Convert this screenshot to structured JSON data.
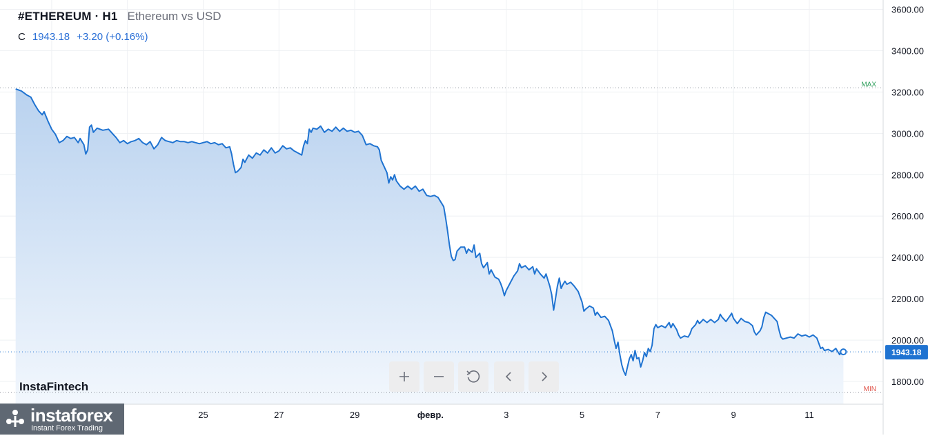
{
  "header": {
    "symbol": "#ETHEREUM · H1",
    "description": "Ethereum vs USD",
    "ohlc_label": "C",
    "close": "1943.18",
    "change": "+3.20 (+0.16%)"
  },
  "branding": {
    "small_logo": "InstaFintech",
    "logo_name": "instaforex",
    "logo_tagline": "Instant Forex Trading"
  },
  "toolbar": {
    "zoom_in_icon": "plus-icon",
    "zoom_out_icon": "minus-icon",
    "reset_icon": "reset-icon",
    "scroll_left_icon": "chevron-left-icon",
    "scroll_right_icon": "chevron-right-icon"
  },
  "colors": {
    "line": "#1f73d1",
    "area_top": "#b9d2ef",
    "area_bottom": "#f2f7fd",
    "last_price_bg": "#1f73d1",
    "max_label": "#2e9e5b",
    "min_label": "#e0544a"
  },
  "chart_data": {
    "type": "area",
    "y_ticks": [
      "3400.00",
      "3200.00",
      "3000.00",
      "2800.00",
      "2600.00",
      "2400.00",
      "2200.00",
      "2000.00",
      "1800.00"
    ],
    "y_range": [
      1690,
      3645
    ],
    "x_tick_labels": [
      "25",
      "27",
      "29",
      "февр.",
      "3",
      "5",
      "7",
      "9",
      "11"
    ],
    "x_tick_positions": [
      25,
      27,
      29,
      31,
      33,
      35,
      37,
      39,
      41
    ],
    "x_range": [
      20,
      42.95
    ],
    "max_label": "MAX",
    "min_label": "MIN",
    "max_value": 3220,
    "min_value": 1747,
    "last_value": 1943.18,
    "last_value_label": "1943.18",
    "series": [
      {
        "points": [
          [
            20.05,
            3215
          ],
          [
            20.2,
            3205
          ],
          [
            20.35,
            3185
          ],
          [
            20.45,
            3175
          ],
          [
            20.55,
            3140
          ],
          [
            20.65,
            3110
          ],
          [
            20.75,
            3090
          ],
          [
            20.8,
            3105
          ],
          [
            20.9,
            3060
          ],
          [
            21.0,
            3020
          ],
          [
            21.1,
            2995
          ],
          [
            21.2,
            2955
          ],
          [
            21.3,
            2965
          ],
          [
            21.4,
            2985
          ],
          [
            21.5,
            2975
          ],
          [
            21.6,
            2980
          ],
          [
            21.7,
            2955
          ],
          [
            21.75,
            2975
          ],
          [
            21.85,
            2945
          ],
          [
            21.9,
            2900
          ],
          [
            21.95,
            2920
          ],
          [
            22.0,
            3030
          ],
          [
            22.05,
            3040
          ],
          [
            22.1,
            3005
          ],
          [
            22.2,
            3025
          ],
          [
            22.35,
            3015
          ],
          [
            22.5,
            3020
          ],
          [
            22.6,
            3000
          ],
          [
            22.7,
            2980
          ],
          [
            22.8,
            2955
          ],
          [
            22.9,
            2965
          ],
          [
            23.0,
            2950
          ],
          [
            23.1,
            2960
          ],
          [
            23.2,
            2965
          ],
          [
            23.3,
            2975
          ],
          [
            23.4,
            2955
          ],
          [
            23.5,
            2945
          ],
          [
            23.6,
            2960
          ],
          [
            23.7,
            2925
          ],
          [
            23.8,
            2945
          ],
          [
            23.9,
            2980
          ],
          [
            24.0,
            2965
          ],
          [
            24.1,
            2960
          ],
          [
            24.2,
            2955
          ],
          [
            24.3,
            2965
          ],
          [
            24.4,
            2960
          ],
          [
            24.5,
            2960
          ],
          [
            24.6,
            2955
          ],
          [
            24.7,
            2960
          ],
          [
            24.8,
            2955
          ],
          [
            24.9,
            2950
          ],
          [
            25.0,
            2955
          ],
          [
            25.1,
            2960
          ],
          [
            25.2,
            2950
          ],
          [
            25.3,
            2955
          ],
          [
            25.4,
            2945
          ],
          [
            25.5,
            2950
          ],
          [
            25.6,
            2930
          ],
          [
            25.7,
            2935
          ],
          [
            25.75,
            2900
          ],
          [
            25.8,
            2850
          ],
          [
            25.85,
            2810
          ],
          [
            25.9,
            2815
          ],
          [
            25.95,
            2825
          ],
          [
            26.0,
            2835
          ],
          [
            26.05,
            2875
          ],
          [
            26.1,
            2860
          ],
          [
            26.2,
            2895
          ],
          [
            26.3,
            2880
          ],
          [
            26.4,
            2905
          ],
          [
            26.5,
            2895
          ],
          [
            26.6,
            2920
          ],
          [
            26.7,
            2905
          ],
          [
            26.8,
            2930
          ],
          [
            26.9,
            2905
          ],
          [
            27.0,
            2915
          ],
          [
            27.1,
            2940
          ],
          [
            27.2,
            2925
          ],
          [
            27.3,
            2930
          ],
          [
            27.4,
            2915
          ],
          [
            27.5,
            2905
          ],
          [
            27.6,
            2895
          ],
          [
            27.65,
            2940
          ],
          [
            27.7,
            2965
          ],
          [
            27.75,
            2950
          ],
          [
            27.8,
            3020
          ],
          [
            27.85,
            3005
          ],
          [
            27.9,
            3025
          ],
          [
            28.0,
            3020
          ],
          [
            28.1,
            3035
          ],
          [
            28.2,
            3005
          ],
          [
            28.3,
            3020
          ],
          [
            28.4,
            3010
          ],
          [
            28.5,
            3030
          ],
          [
            28.6,
            3010
          ],
          [
            28.7,
            3025
          ],
          [
            28.8,
            3010
          ],
          [
            28.9,
            3015
          ],
          [
            29.0,
            3005
          ],
          [
            29.1,
            3010
          ],
          [
            29.2,
            2990
          ],
          [
            29.3,
            2945
          ],
          [
            29.4,
            2950
          ],
          [
            29.5,
            2940
          ],
          [
            29.6,
            2935
          ],
          [
            29.65,
            2920
          ],
          [
            29.7,
            2870
          ],
          [
            29.8,
            2830
          ],
          [
            29.85,
            2810
          ],
          [
            29.9,
            2760
          ],
          [
            29.95,
            2790
          ],
          [
            30.0,
            2775
          ],
          [
            30.05,
            2800
          ],
          [
            30.1,
            2770
          ],
          [
            30.2,
            2745
          ],
          [
            30.3,
            2730
          ],
          [
            30.4,
            2745
          ],
          [
            30.5,
            2730
          ],
          [
            30.6,
            2745
          ],
          [
            30.7,
            2720
          ],
          [
            30.8,
            2730
          ],
          [
            30.9,
            2700
          ],
          [
            31.0,
            2695
          ],
          [
            31.1,
            2700
          ],
          [
            31.2,
            2690
          ],
          [
            31.3,
            2660
          ],
          [
            31.35,
            2645
          ],
          [
            31.4,
            2590
          ],
          [
            31.45,
            2530
          ],
          [
            31.5,
            2460
          ],
          [
            31.55,
            2405
          ],
          [
            31.6,
            2385
          ],
          [
            31.65,
            2390
          ],
          [
            31.7,
            2430
          ],
          [
            31.8,
            2450
          ],
          [
            31.9,
            2450
          ],
          [
            31.95,
            2420
          ],
          [
            32.0,
            2440
          ],
          [
            32.1,
            2425
          ],
          [
            32.15,
            2460
          ],
          [
            32.2,
            2400
          ],
          [
            32.3,
            2420
          ],
          [
            32.35,
            2370
          ],
          [
            32.4,
            2350
          ],
          [
            32.5,
            2375
          ],
          [
            32.55,
            2320
          ],
          [
            32.6,
            2340
          ],
          [
            32.7,
            2305
          ],
          [
            32.8,
            2295
          ],
          [
            32.85,
            2275
          ],
          [
            32.9,
            2250
          ],
          [
            32.95,
            2215
          ],
          [
            33.0,
            2240
          ],
          [
            33.1,
            2275
          ],
          [
            33.2,
            2310
          ],
          [
            33.3,
            2335
          ],
          [
            33.35,
            2370
          ],
          [
            33.4,
            2350
          ],
          [
            33.5,
            2360
          ],
          [
            33.6,
            2340
          ],
          [
            33.7,
            2355
          ],
          [
            33.75,
            2320
          ],
          [
            33.8,
            2345
          ],
          [
            33.9,
            2320
          ],
          [
            34.0,
            2300
          ],
          [
            34.05,
            2320
          ],
          [
            34.1,
            2290
          ],
          [
            34.15,
            2260
          ],
          [
            34.2,
            2220
          ],
          [
            34.25,
            2145
          ],
          [
            34.3,
            2200
          ],
          [
            34.35,
            2260
          ],
          [
            34.4,
            2300
          ],
          [
            34.45,
            2250
          ],
          [
            34.5,
            2270
          ],
          [
            34.55,
            2285
          ],
          [
            34.6,
            2270
          ],
          [
            34.7,
            2280
          ],
          [
            34.8,
            2260
          ],
          [
            34.9,
            2235
          ],
          [
            35.0,
            2185
          ],
          [
            35.05,
            2140
          ],
          [
            35.1,
            2150
          ],
          [
            35.2,
            2165
          ],
          [
            35.3,
            2155
          ],
          [
            35.35,
            2120
          ],
          [
            35.4,
            2135
          ],
          [
            35.5,
            2110
          ],
          [
            35.6,
            2115
          ],
          [
            35.7,
            2095
          ],
          [
            35.8,
            2045
          ],
          [
            35.85,
            2000
          ],
          [
            35.9,
            1960
          ],
          [
            35.95,
            1990
          ],
          [
            36.0,
            1930
          ],
          [
            36.05,
            1880
          ],
          [
            36.1,
            1850
          ],
          [
            36.15,
            1830
          ],
          [
            36.2,
            1870
          ],
          [
            36.25,
            1910
          ],
          [
            36.3,
            1930
          ],
          [
            36.35,
            1900
          ],
          [
            36.4,
            1950
          ],
          [
            36.45,
            1910
          ],
          [
            36.5,
            1915
          ],
          [
            36.55,
            1870
          ],
          [
            36.6,
            1900
          ],
          [
            36.65,
            1940
          ],
          [
            36.7,
            1920
          ],
          [
            36.75,
            1960
          ],
          [
            36.8,
            1945
          ],
          [
            36.85,
            1975
          ],
          [
            36.9,
            2055
          ],
          [
            36.95,
            2075
          ],
          [
            37.0,
            2060
          ],
          [
            37.1,
            2070
          ],
          [
            37.2,
            2060
          ],
          [
            37.3,
            2085
          ],
          [
            37.35,
            2060
          ],
          [
            37.4,
            2080
          ],
          [
            37.5,
            2050
          ],
          [
            37.55,
            2025
          ],
          [
            37.6,
            2010
          ],
          [
            37.7,
            2020
          ],
          [
            37.8,
            2015
          ],
          [
            37.85,
            2030
          ],
          [
            37.9,
            2055
          ],
          [
            38.0,
            2075
          ],
          [
            38.05,
            2095
          ],
          [
            38.1,
            2080
          ],
          [
            38.2,
            2100
          ],
          [
            38.3,
            2085
          ],
          [
            38.4,
            2100
          ],
          [
            38.5,
            2085
          ],
          [
            38.6,
            2100
          ],
          [
            38.65,
            2125
          ],
          [
            38.7,
            2110
          ],
          [
            38.8,
            2090
          ],
          [
            38.9,
            2115
          ],
          [
            38.95,
            2130
          ],
          [
            39.0,
            2105
          ],
          [
            39.1,
            2080
          ],
          [
            39.2,
            2105
          ],
          [
            39.3,
            2090
          ],
          [
            39.4,
            2085
          ],
          [
            39.5,
            2070
          ],
          [
            39.55,
            2040
          ],
          [
            39.6,
            2025
          ],
          [
            39.7,
            2045
          ],
          [
            39.75,
            2065
          ],
          [
            39.8,
            2110
          ],
          [
            39.85,
            2135
          ],
          [
            39.9,
            2130
          ],
          [
            40.0,
            2120
          ],
          [
            40.1,
            2100
          ],
          [
            40.15,
            2090
          ],
          [
            40.2,
            2050
          ],
          [
            40.25,
            2015
          ],
          [
            40.3,
            2005
          ],
          [
            40.4,
            2010
          ],
          [
            40.5,
            2015
          ],
          [
            40.6,
            2010
          ],
          [
            40.7,
            2030
          ],
          [
            40.8,
            2020
          ],
          [
            40.9,
            2025
          ],
          [
            41.0,
            2015
          ],
          [
            41.1,
            2025
          ],
          [
            41.2,
            2010
          ],
          [
            41.25,
            1985
          ],
          [
            41.3,
            1960
          ],
          [
            41.35,
            1965
          ],
          [
            41.4,
            1950
          ],
          [
            41.5,
            1955
          ],
          [
            41.6,
            1945
          ],
          [
            41.7,
            1960
          ],
          [
            41.75,
            1945
          ],
          [
            41.8,
            1930
          ],
          [
            41.85,
            1945
          ],
          [
            41.9,
            1943.18
          ]
        ]
      }
    ]
  }
}
